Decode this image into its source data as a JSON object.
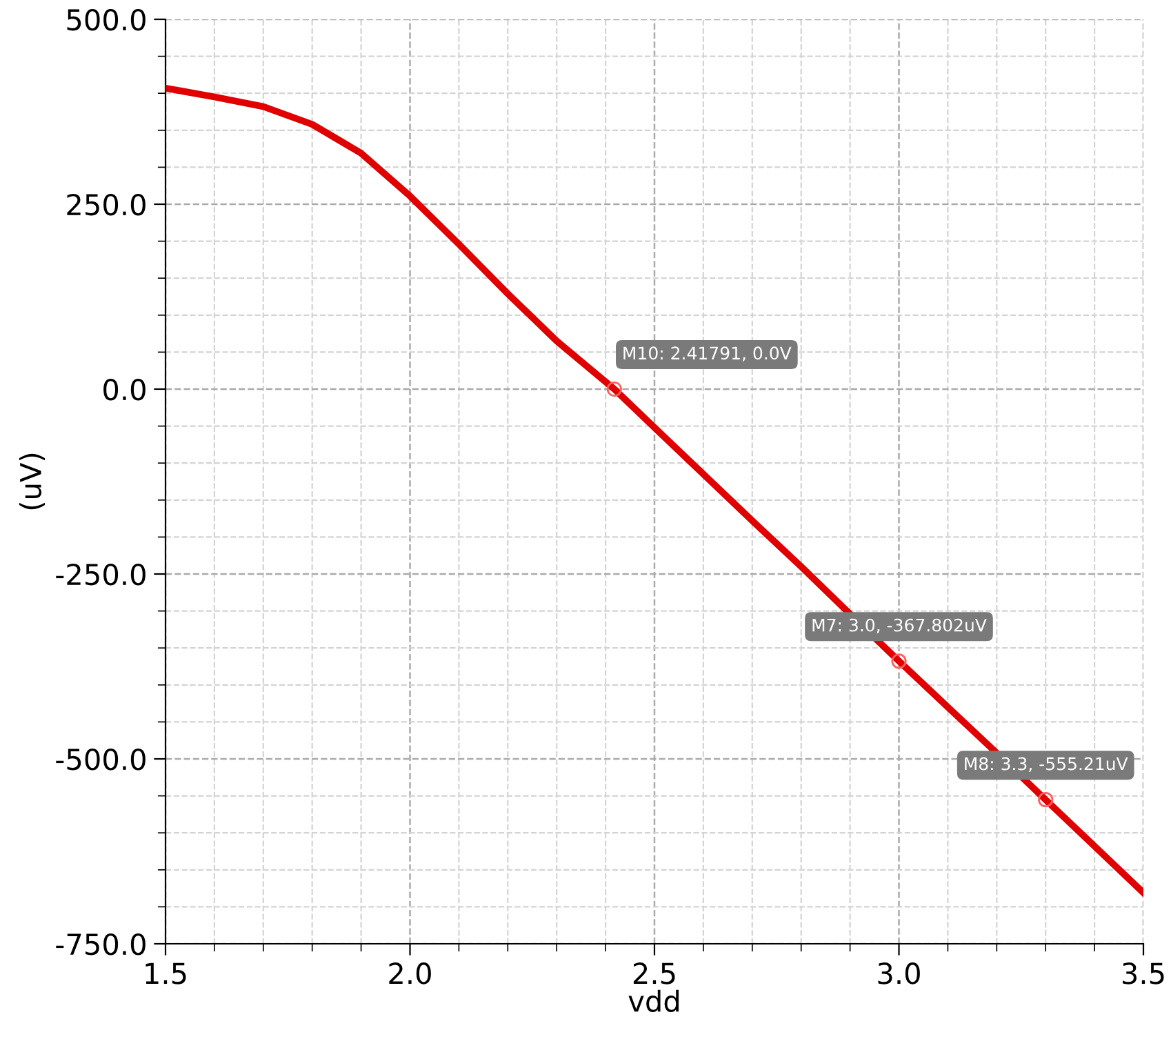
{
  "chart_data": {
    "type": "line",
    "xlabel": "vdd",
    "ylabel": "(uV)",
    "x": [
      1.5,
      1.6,
      1.7,
      1.8,
      1.9,
      2.0,
      2.1,
      2.2,
      2.3,
      2.41791,
      2.5,
      2.6,
      2.7,
      2.8,
      2.9,
      3.0,
      3.1,
      3.2,
      3.3,
      3.4,
      3.5
    ],
    "series": [
      {
        "color": "#e00000",
        "values": [
          407,
          395,
          382,
          358,
          319,
          261,
          196,
          129,
          65,
          0,
          -52,
          -115,
          -178,
          -240,
          -304,
          -367.802,
          -430,
          -492,
          -555.21,
          -618,
          -681
        ]
      }
    ],
    "xlim": [
      1.5,
      3.5
    ],
    "xticks": [
      1.5,
      {
        "value": 2,
        "label": "2.0"
      },
      2.5,
      {
        "value": 3,
        "label": "3.0"
      },
      3.5
    ],
    "ylim": [
      -750,
      500
    ],
    "yticks": [
      {
        "value": -750,
        "label": "-750.0"
      },
      {
        "value": -500,
        "label": "-500.0"
      },
      {
        "value": -250,
        "label": "-250.0"
      },
      {
        "value": 0,
        "label": "0.0"
      },
      {
        "value": 250,
        "label": "250.0"
      },
      {
        "value": 500,
        "label": "500.0"
      }
    ],
    "grid": true,
    "legend": false,
    "marker": "none",
    "line_style": "solid",
    "annotations": [
      {
        "text": "M10: 2.41791, 0.0V",
        "x": 2.41791,
        "y": 0
      },
      {
        "text": "M7: 3.0, -367.802uV",
        "x": 3.0,
        "y": -367.802
      },
      {
        "text": "M8: 3.3, -555.21uV",
        "x": 3.3,
        "y": -555.21
      }
    ]
  }
}
